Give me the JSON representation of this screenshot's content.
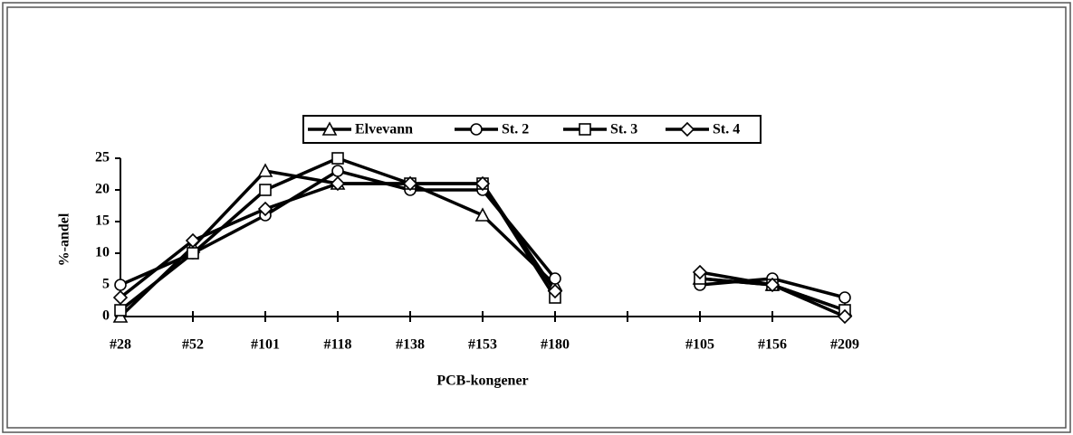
{
  "chart_data": {
    "type": "line",
    "x_label": "PCB-kongener",
    "y_label": "%-andel",
    "categories": [
      "#28",
      "#52",
      "#101",
      "#118",
      "#138",
      "#153",
      "#180",
      null,
      "#105",
      "#156",
      "#209"
    ],
    "series": [
      {
        "name": "Elvevann",
        "color": "#000000",
        "marker": "triangle",
        "values": [
          0,
          11,
          23,
          21,
          21,
          16,
          5,
          null,
          6,
          5,
          1
        ]
      },
      {
        "name": "St. 2",
        "color": "#000000",
        "marker": "circle",
        "values": [
          5,
          10,
          16,
          23,
          20,
          20,
          6,
          null,
          5,
          6,
          3
        ]
      },
      {
        "name": "St. 3",
        "color": "#000000",
        "marker": "square",
        "values": [
          1,
          10,
          20,
          25,
          21,
          21,
          3,
          null,
          6,
          5,
          1
        ]
      },
      {
        "name": "St. 4",
        "color": "#000000",
        "marker": "diamond",
        "values": [
          3,
          12,
          17,
          21,
          21,
          21,
          4,
          null,
          7,
          5,
          0
        ]
      }
    ],
    "ylim": [
      0,
      25
    ],
    "yticks": [
      0,
      5,
      10,
      15,
      20,
      25
    ],
    "grid": false,
    "legend": "top"
  }
}
